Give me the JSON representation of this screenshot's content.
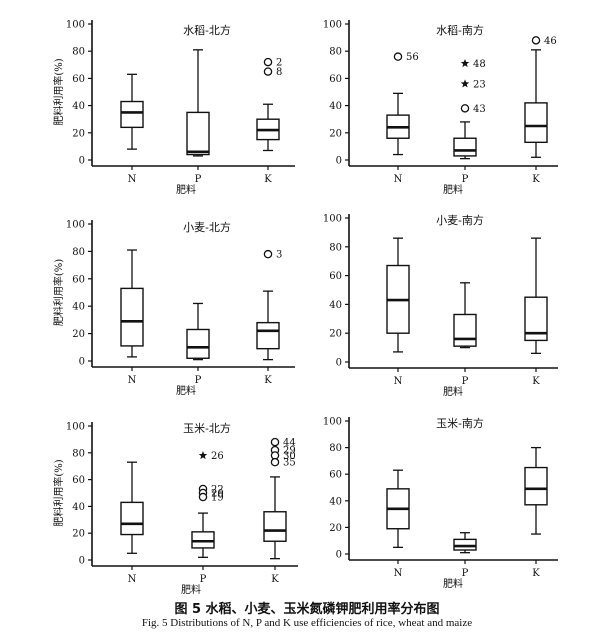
{
  "caption": {
    "cn": "图 5   水稻、小麦、玉米氮磷钾肥利用率分布图",
    "en": "Fig. 5    Distributions of N, P and K use efficiencies of rice, wheat and maize"
  },
  "chart_data": [
    {
      "type": "boxplot",
      "title": "水稻-北方",
      "ylabel": "肥料利用率(%)",
      "xlabel": "肥料",
      "ylim": [
        0,
        100
      ],
      "yticks": [
        0,
        20,
        40,
        60,
        80,
        100
      ],
      "categories": [
        "N",
        "P",
        "K"
      ],
      "boxes": [
        {
          "min": 8,
          "q1": 24,
          "median": 35,
          "q3": 43,
          "max": 63,
          "outliers": []
        },
        {
          "min": 3,
          "q1": 4,
          "median": 6,
          "q3": 35,
          "max": 81,
          "outliers": []
        },
        {
          "min": 7,
          "q1": 15,
          "median": 22,
          "q3": 30,
          "max": 41,
          "outliers": [
            {
              "value": 72,
              "label": "2",
              "marker": "circle"
            },
            {
              "value": 65,
              "label": "8",
              "marker": "circle"
            }
          ]
        }
      ]
    },
    {
      "type": "boxplot",
      "title": "水稻-南方",
      "ylabel": "",
      "xlabel": "肥料",
      "ylim": [
        0,
        100
      ],
      "yticks": [
        0,
        20,
        40,
        60,
        80,
        100
      ],
      "categories": [
        "N",
        "P",
        "K"
      ],
      "boxes": [
        {
          "min": 4,
          "q1": 16,
          "median": 24,
          "q3": 33,
          "max": 49,
          "outliers": [
            {
              "value": 76,
              "label": "56",
              "marker": "circle"
            }
          ]
        },
        {
          "min": 1,
          "q1": 3,
          "median": 7,
          "q3": 16,
          "max": 28,
          "outliers": [
            {
              "value": 71,
              "label": "48",
              "marker": "star"
            },
            {
              "value": 56,
              "label": "23",
              "marker": "star"
            },
            {
              "value": 38,
              "label": "43",
              "marker": "circle"
            }
          ]
        },
        {
          "min": 2,
          "q1": 13,
          "median": 25,
          "q3": 42,
          "max": 81,
          "outliers": [
            {
              "value": 88,
              "label": "46",
              "marker": "circle"
            }
          ]
        }
      ]
    },
    {
      "type": "boxplot",
      "title": "小麦-北方",
      "ylabel": "肥料利用率(%)",
      "xlabel": "肥料",
      "ylim": [
        0,
        100
      ],
      "yticks": [
        0,
        20,
        40,
        60,
        80,
        100
      ],
      "categories": [
        "N",
        "P",
        "K"
      ],
      "boxes": [
        {
          "min": 3,
          "q1": 11,
          "median": 29,
          "q3": 53,
          "max": 81,
          "outliers": []
        },
        {
          "min": 1,
          "q1": 2,
          "median": 10,
          "q3": 23,
          "max": 42,
          "outliers": []
        },
        {
          "min": 1,
          "q1": 9,
          "median": 22,
          "q3": 28,
          "max": 51,
          "outliers": [
            {
              "value": 78,
              "label": "3",
              "marker": "circle"
            }
          ]
        }
      ]
    },
    {
      "type": "boxplot",
      "title": "小麦-南方",
      "ylabel": "",
      "xlabel": "肥料",
      "ylim": [
        0,
        100
      ],
      "yticks": [
        0,
        20,
        40,
        60,
        80,
        100
      ],
      "categories": [
        "N",
        "P",
        "K"
      ],
      "boxes": [
        {
          "min": 7,
          "q1": 20,
          "median": 43,
          "q3": 67,
          "max": 86,
          "outliers": []
        },
        {
          "min": 10,
          "q1": 11,
          "median": 16,
          "q3": 33,
          "max": 55,
          "outliers": []
        },
        {
          "min": 6,
          "q1": 15,
          "median": 20,
          "q3": 45,
          "max": 86,
          "outliers": []
        }
      ]
    },
    {
      "type": "boxplot",
      "title": "玉米-北方",
      "ylabel": "肥料利用率(%)",
      "xlabel": "肥料",
      "ylim": [
        0,
        100
      ],
      "yticks": [
        0,
        20,
        40,
        60,
        80,
        100
      ],
      "categories": [
        "N",
        "P",
        "K"
      ],
      "boxes": [
        {
          "min": 5,
          "q1": 19,
          "median": 27,
          "q3": 43,
          "max": 73,
          "outliers": []
        },
        {
          "min": 2,
          "q1": 9,
          "median": 14,
          "q3": 21,
          "max": 35,
          "outliers": [
            {
              "value": 78,
              "label": "26",
              "marker": "star"
            },
            {
              "value": 53,
              "label": "22",
              "marker": "circle"
            },
            {
              "value": 50,
              "label": "20",
              "marker": "circle"
            },
            {
              "value": 47,
              "label": "19",
              "marker": "circle"
            }
          ]
        },
        {
          "min": 1,
          "q1": 14,
          "median": 22,
          "q3": 36,
          "max": 62,
          "outliers": [
            {
              "value": 88,
              "label": "44",
              "marker": "circle"
            },
            {
              "value": 82,
              "label": "29",
              "marker": "circle"
            },
            {
              "value": 78,
              "label": "30",
              "marker": "circle"
            },
            {
              "value": 73,
              "label": "35",
              "marker": "circle"
            }
          ]
        }
      ]
    },
    {
      "type": "boxplot",
      "title": "玉米-南方",
      "ylabel": "",
      "xlabel": "肥料",
      "ylim": [
        0,
        100
      ],
      "yticks": [
        0,
        20,
        40,
        60,
        80,
        100
      ],
      "categories": [
        "N",
        "P",
        "K"
      ],
      "boxes": [
        {
          "min": 5,
          "q1": 19,
          "median": 34,
          "q3": 49,
          "max": 63,
          "outliers": []
        },
        {
          "min": 1,
          "q1": 3,
          "median": 6,
          "q3": 11,
          "max": 16,
          "outliers": []
        },
        {
          "min": 15,
          "q1": 37,
          "median": 49,
          "q3": 65,
          "max": 80,
          "outliers": []
        }
      ]
    }
  ]
}
